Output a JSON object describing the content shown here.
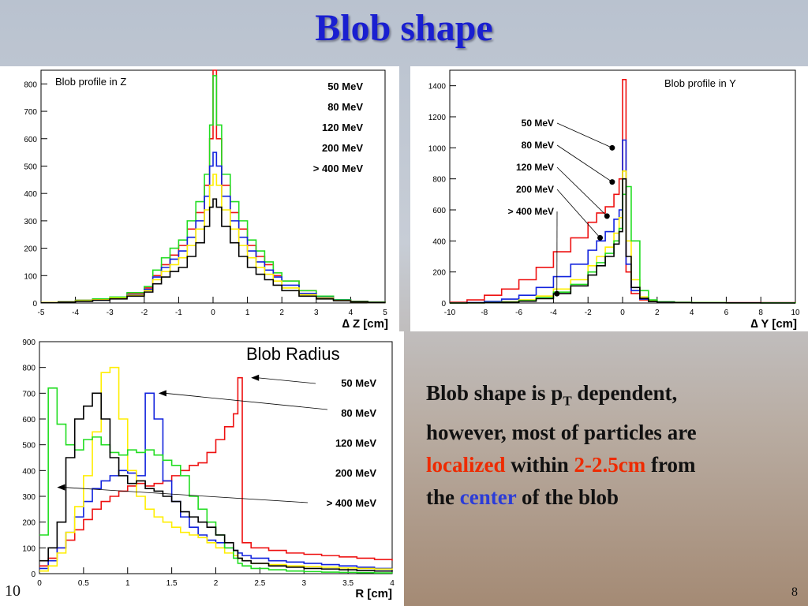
{
  "slide": {
    "title": "Blob shape",
    "page_left": "10",
    "page_right": "8",
    "desc": {
      "line1_a": "Blob shape is p",
      "line1_sub": "T",
      "line1_b": " dependent,",
      "line2": "however, most of particles are",
      "line3_red1": "localized",
      "line3_mid": " within ",
      "line3_red2": "2-2.5cm",
      "line3_end": " from",
      "line4_a": "the ",
      "line4_blue": "center",
      "line4_b": " of the blob"
    }
  },
  "colors": {
    "title": "#1a1fd0",
    "red": "#ee2a00",
    "blue": "#2b3cd8",
    "s50": "#ee1111",
    "s80": "#1122dd",
    "s120": "#ffee00",
    "s200": "#22dd22",
    "s400": "#000000"
  },
  "chart_data": [
    {
      "type": "line",
      "title": "Blob profile in Z",
      "xlabel": "∆ Z [cm]",
      "xlim": [
        -5,
        5
      ],
      "ylim": [
        0,
        850
      ],
      "xticks": [
        -5,
        -4,
        -3,
        -2,
        -1,
        0,
        1,
        2,
        3,
        4,
        5
      ],
      "yticks": [
        0,
        100,
        200,
        300,
        400,
        500,
        600,
        700,
        800
      ],
      "x": [
        -5,
        -4.5,
        -4,
        -3.5,
        -3,
        -2.5,
        -2,
        -1.75,
        -1.5,
        -1.25,
        -1,
        -0.75,
        -0.5,
        -0.25,
        -0.1,
        0,
        0.1,
        0.25,
        0.5,
        0.75,
        1,
        1.25,
        1.5,
        1.75,
        2,
        2.5,
        3,
        3.5,
        4,
        4.5,
        5
      ],
      "series": [
        {
          "name": "50 MeV",
          "color": "#ee1111",
          "values": [
            2,
            5,
            10,
            15,
            20,
            35,
            55,
            100,
            140,
            175,
            210,
            270,
            330,
            430,
            600,
            850,
            600,
            430,
            330,
            270,
            210,
            170,
            140,
            100,
            80,
            45,
            25,
            12,
            6,
            3,
            1
          ]
        },
        {
          "name": "80 MeV",
          "color": "#22dd22",
          "values": [
            2,
            5,
            10,
            15,
            22,
            38,
            60,
            120,
            165,
            200,
            230,
            300,
            370,
            470,
            650,
            830,
            650,
            470,
            370,
            300,
            230,
            190,
            150,
            110,
            80,
            45,
            25,
            12,
            6,
            3,
            1
          ]
        },
        {
          "name": "120 MeV",
          "color": "#1122dd",
          "values": [
            2,
            4,
            8,
            12,
            18,
            30,
            50,
            95,
            130,
            160,
            190,
            240,
            300,
            390,
            500,
            550,
            500,
            390,
            300,
            240,
            190,
            150,
            120,
            95,
            65,
            35,
            20,
            10,
            5,
            2,
            1
          ]
        },
        {
          "name": "200 MeV",
          "color": "#ffee00",
          "values": [
            2,
            4,
            8,
            12,
            18,
            28,
            45,
            85,
            115,
            140,
            165,
            210,
            270,
            340,
            430,
            470,
            430,
            340,
            270,
            210,
            165,
            130,
            105,
            80,
            55,
            30,
            18,
            9,
            4,
            2,
            1
          ]
        },
        {
          "name": "> 400 MeV",
          "color": "#000000",
          "values": [
            1,
            3,
            6,
            10,
            15,
            25,
            40,
            70,
            95,
            115,
            130,
            170,
            220,
            280,
            350,
            380,
            350,
            280,
            220,
            170,
            130,
            105,
            85,
            65,
            45,
            25,
            15,
            8,
            4,
            2,
            1
          ]
        }
      ]
    },
    {
      "type": "line",
      "title": "Blob profile in Y",
      "xlabel": "∆ Y [cm]",
      "xlim": [
        -10,
        10
      ],
      "ylim": [
        0,
        1500
      ],
      "xticks": [
        -10,
        -8,
        -6,
        -4,
        -2,
        0,
        2,
        4,
        6,
        8,
        10
      ],
      "yticks": [
        0,
        200,
        400,
        600,
        800,
        1000,
        1200,
        1400
      ],
      "x": [
        -10,
        -9,
        -8,
        -7,
        -6,
        -5,
        -4,
        -3,
        -2,
        -1.5,
        -1,
        -0.5,
        -0.2,
        0,
        0.2,
        0.5,
        1,
        1.5,
        2,
        3,
        4,
        6,
        8,
        10
      ],
      "series": [
        {
          "name": "50 MeV",
          "color": "#ee1111",
          "values": [
            5,
            20,
            50,
            90,
            150,
            230,
            330,
            420,
            520,
            580,
            620,
            700,
            800,
            1440,
            200,
            60,
            20,
            10,
            5,
            4,
            3,
            2,
            2,
            1
          ]
        },
        {
          "name": "80 MeV",
          "color": "#1122dd",
          "values": [
            1,
            3,
            10,
            25,
            50,
            100,
            170,
            250,
            340,
            400,
            460,
            540,
            600,
            1050,
            250,
            80,
            25,
            10,
            5,
            3,
            2,
            1,
            1,
            1
          ]
        },
        {
          "name": "120 MeV",
          "color": "#ffee00",
          "values": [
            0,
            1,
            3,
            8,
            20,
            45,
            90,
            150,
            240,
            300,
            360,
            450,
            550,
            850,
            400,
            150,
            40,
            15,
            6,
            3,
            2,
            1,
            1,
            0
          ]
        },
        {
          "name": "200 MeV",
          "color": "#22dd22",
          "values": [
            0,
            1,
            3,
            6,
            15,
            35,
            70,
            120,
            200,
            260,
            320,
            400,
            480,
            700,
            750,
            400,
            80,
            20,
            8,
            4,
            2,
            1,
            1,
            0
          ]
        },
        {
          "name": "> 400 MeV",
          "color": "#000000",
          "values": [
            0,
            1,
            2,
            5,
            12,
            28,
            60,
            110,
            180,
            240,
            300,
            380,
            460,
            800,
            300,
            100,
            30,
            10,
            5,
            2,
            1,
            1,
            0,
            0
          ]
        }
      ],
      "labels": [
        "50 MeV",
        "80 MeV",
        "120 MeV",
        "200 MeV",
        "> 400 MeV"
      ]
    },
    {
      "type": "line",
      "title": "Blob Radius",
      "xlabel": "R [cm]",
      "xlim": [
        0,
        4
      ],
      "ylim": [
        0,
        900
      ],
      "xticks": [
        0,
        0.5,
        1,
        1.5,
        2,
        2.5,
        3,
        3.5,
        4
      ],
      "xtick_labels": [
        "0",
        "0.5",
        "1",
        "1.5",
        "2",
        "2.5",
        "3",
        "3.5",
        "4"
      ],
      "yticks": [
        0,
        100,
        200,
        300,
        400,
        500,
        600,
        700,
        800,
        900
      ],
      "x": [
        0,
        0.1,
        0.2,
        0.3,
        0.4,
        0.5,
        0.6,
        0.7,
        0.8,
        0.9,
        1.0,
        1.1,
        1.2,
        1.3,
        1.4,
        1.5,
        1.6,
        1.7,
        1.8,
        1.9,
        2.0,
        2.1,
        2.2,
        2.25,
        2.3,
        2.4,
        2.6,
        2.8,
        3.0,
        3.2,
        3.4,
        3.6,
        3.8,
        4.0
      ],
      "series": [
        {
          "name": "50 MeV",
          "color": "#ee1111",
          "values": [
            30,
            60,
            100,
            130,
            170,
            210,
            250,
            280,
            300,
            320,
            340,
            350,
            340,
            350,
            360,
            380,
            400,
            420,
            430,
            470,
            520,
            570,
            620,
            760,
            120,
            100,
            90,
            80,
            75,
            70,
            65,
            60,
            55,
            50
          ]
        },
        {
          "name": "80 MeV",
          "color": "#1122dd",
          "values": [
            20,
            50,
            100,
            160,
            220,
            280,
            330,
            360,
            380,
            400,
            390,
            380,
            700,
            600,
            360,
            280,
            220,
            180,
            150,
            130,
            120,
            100,
            90,
            80,
            70,
            60,
            50,
            45,
            40,
            35,
            30,
            25,
            20,
            20
          ]
        },
        {
          "name": "120 MeV",
          "color": "#ffee00",
          "values": [
            10,
            30,
            80,
            160,
            260,
            380,
            550,
            780,
            800,
            600,
            400,
            300,
            250,
            220,
            200,
            180,
            160,
            150,
            140,
            120,
            100,
            80,
            70,
            60,
            50,
            40,
            35,
            30,
            28,
            25,
            22,
            20,
            18,
            15
          ]
        },
        {
          "name": "200 MeV",
          "color": "#22dd22",
          "values": [
            150,
            720,
            580,
            500,
            480,
            520,
            530,
            500,
            470,
            460,
            480,
            470,
            480,
            460,
            440,
            420,
            380,
            300,
            250,
            200,
            150,
            100,
            60,
            40,
            30,
            20,
            15,
            10,
            8,
            6,
            5,
            4,
            3,
            2
          ]
        },
        {
          "name": "> 400 MeV",
          "color": "#000000",
          "values": [
            50,
            100,
            200,
            450,
            600,
            650,
            700,
            600,
            450,
            380,
            350,
            360,
            330,
            320,
            300,
            280,
            240,
            220,
            200,
            180,
            150,
            120,
            90,
            60,
            50,
            40,
            30,
            25,
            20,
            18,
            15,
            12,
            10,
            8
          ]
        }
      ],
      "labels": [
        "50 MeV",
        "80 MeV",
        "120 MeV",
        "200 MeV",
        "> 400 MeV"
      ]
    }
  ]
}
